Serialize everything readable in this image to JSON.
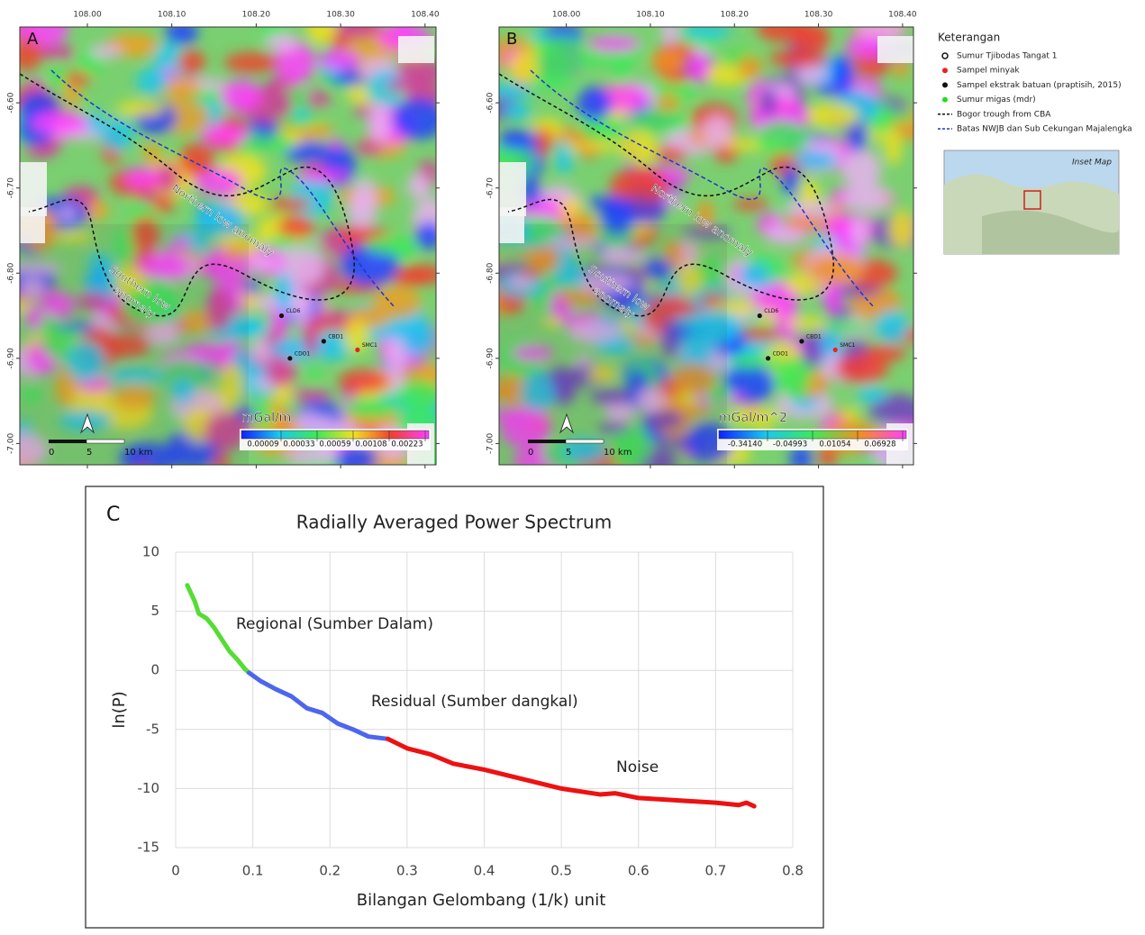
{
  "map_axes": {
    "xlim": [
      107.92,
      108.413
    ],
    "ylim": [
      -7.025,
      -6.511
    ],
    "xticks": [
      {
        "value": 108.0,
        "label": "108.00"
      },
      {
        "value": 108.1,
        "label": "108.10"
      },
      {
        "value": 108.2,
        "label": "108.20"
      },
      {
        "value": 108.3,
        "label": "108.30"
      },
      {
        "value": 108.4,
        "label": "108.40"
      }
    ],
    "yticks": [
      {
        "value": -6.6,
        "label": "-6.60"
      },
      {
        "value": -6.7,
        "label": "-6.70"
      },
      {
        "value": -6.8,
        "label": "-6.80"
      },
      {
        "value": -6.9,
        "label": "-6.90"
      },
      {
        "value": -7.0,
        "label": "-7.00"
      }
    ]
  },
  "wells": [
    {
      "label": "CLD6",
      "lon": 108.23,
      "lat": -6.85,
      "color": "#111111"
    },
    {
      "label": "CBD1",
      "lon": 108.28,
      "lat": -6.88,
      "color": "#111111"
    },
    {
      "label": "SMC1",
      "lon": 108.32,
      "lat": -6.89,
      "color": "#e8231c"
    },
    {
      "label": "CDO1",
      "lon": 108.24,
      "lat": -6.9,
      "color": "#111111"
    }
  ],
  "maps": [
    {
      "panel": "A",
      "unit": "mGal/m",
      "colorbar_ticks": [
        9e-05,
        0.00033,
        0.00059,
        0.00108,
        0.00223
      ],
      "northern": "Northern low anomaly",
      "southern": [
        "Southern low",
        "anomaly"
      ],
      "scale_bar": [
        0,
        5,
        {
          "value": 10,
          "label": "10 km"
        }
      ]
    },
    {
      "panel": "B",
      "unit": "mGal/m^2",
      "colorbar_ticks": [
        {
          "value": -0.3414,
          "label": "-0.34140"
        },
        {
          "value": -0.04993,
          "label": "-0.04993"
        },
        {
          "value": 0.01054,
          "label": "0.01054"
        },
        {
          "value": 0.06928,
          "label": "0.06928"
        }
      ],
      "northern": "Northern low anomaly",
      "southern": [
        "Southern low",
        "anomaly"
      ],
      "scale_bar": [
        0,
        5,
        {
          "value": 10,
          "label": "10 km"
        }
      ]
    }
  ],
  "legend": {
    "title": "Keterangan",
    "items": [
      {
        "label": "Sumur Tjibodas Tangat 1",
        "marker": "open-circle",
        "color": "#111111"
      },
      {
        "label": "Sampel minyak",
        "marker": "dot",
        "color": "#e8231c"
      },
      {
        "label": "Sampel ekstrak batuan (praptisih, 2015)",
        "marker": "dot",
        "color": "#111111"
      },
      {
        "label": "Sumur migas (mdr)",
        "marker": "dot",
        "color": "#22dd22"
      },
      {
        "label": "Bogor trough from CBA",
        "marker": "dashed",
        "color": "#111111"
      },
      {
        "label": "Batas NWJB dan Sub Cekungan Majalengka",
        "marker": "dashed",
        "color": "#2233cc"
      }
    ],
    "inset": "Inset Map"
  },
  "chart_data": {
    "type": "line",
    "panel": "C",
    "title": "Radially Averaged Power Spectrum",
    "x_label": "Bilangan Gelombang (1/k) unit",
    "y_label": "ln(P)",
    "xlim": [
      0,
      0.8
    ],
    "ylim": [
      -15,
      10
    ],
    "xticks": [
      0,
      0.1,
      0.2,
      0.3,
      0.4,
      0.5,
      0.6,
      0.7,
      0.8
    ],
    "yticks": [
      10,
      5,
      0,
      -5,
      -10,
      -15
    ],
    "grid": true,
    "series": [
      {
        "name": "Regional (Sumber Dalam)",
        "color": "#55dd33",
        "x": [
          0.015,
          0.025,
          0.03,
          0.04,
          0.05,
          0.06,
          0.07,
          0.08,
          0.09,
          0.095
        ],
        "values": [
          7.2,
          5.8,
          4.8,
          4.4,
          3.6,
          2.6,
          1.6,
          0.9,
          0.1,
          -0.2
        ]
      },
      {
        "name": "Residual (Sumber dangkal)",
        "color": "#4d66ee",
        "x": [
          0.095,
          0.11,
          0.13,
          0.15,
          0.17,
          0.19,
          0.21,
          0.23,
          0.25,
          0.275
        ],
        "values": [
          -0.2,
          -0.9,
          -1.6,
          -2.2,
          -3.2,
          -3.6,
          -4.5,
          -5.0,
          -5.6,
          -5.8
        ]
      },
      {
        "name": "Noise",
        "color": "#ee1111",
        "x": [
          0.275,
          0.3,
          0.33,
          0.36,
          0.4,
          0.45,
          0.5,
          0.55,
          0.57,
          0.6,
          0.65,
          0.7,
          0.73,
          0.74,
          0.75
        ],
        "values": [
          -5.8,
          -6.6,
          -7.1,
          -7.9,
          -8.4,
          -9.2,
          -10.0,
          -10.5,
          -10.4,
          -10.8,
          -11.0,
          -11.2,
          -11.4,
          -11.2,
          -11.5
        ]
      }
    ]
  }
}
